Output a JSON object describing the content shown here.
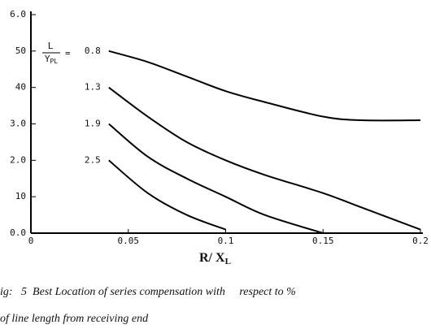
{
  "chart_data": {
    "type": "line",
    "xlabel": "R/ X",
    "xlabel_sub": "L",
    "ratio_label": {
      "numerator": "L",
      "denominator": "Y",
      "denominator_sub": "PL",
      "sign": "="
    },
    "x": [
      0.04,
      0.06,
      0.08,
      0.1,
      0.12,
      0.15,
      0.17,
      0.2
    ],
    "series": [
      {
        "name": "0.8",
        "color": "#000000",
        "values": [
          50,
          47,
          43,
          39,
          36,
          32,
          31,
          31
        ]
      },
      {
        "name": "1.3",
        "color": "#000000",
        "values": [
          40,
          32,
          25,
          20,
          16,
          11,
          7,
          1
        ]
      },
      {
        "name": "1.9",
        "color": "#000000",
        "values": [
          30,
          21,
          15,
          10,
          5,
          0,
          null,
          null
        ]
      },
      {
        "name": "2.5",
        "color": "#000000",
        "values": [
          20,
          11,
          5,
          1,
          null,
          null,
          null,
          null
        ]
      }
    ],
    "xlim": [
      0,
      0.2
    ],
    "xticks": [
      0,
      0.05,
      0.1,
      0.15,
      0.2
    ],
    "ylim": [
      0,
      60
    ],
    "yticks": [
      {
        "value": 0,
        "label": "0.0"
      },
      10,
      {
        "value": 20,
        "label": "2.0"
      },
      {
        "value": 30,
        "label": "3.0"
      },
      40,
      50,
      {
        "value": 60,
        "label": "6.0"
      }
    ],
    "caption": [
      "ig:   5  Best Location of series compensation with     respect to %",
      "of line length from receiving end"
    ]
  }
}
